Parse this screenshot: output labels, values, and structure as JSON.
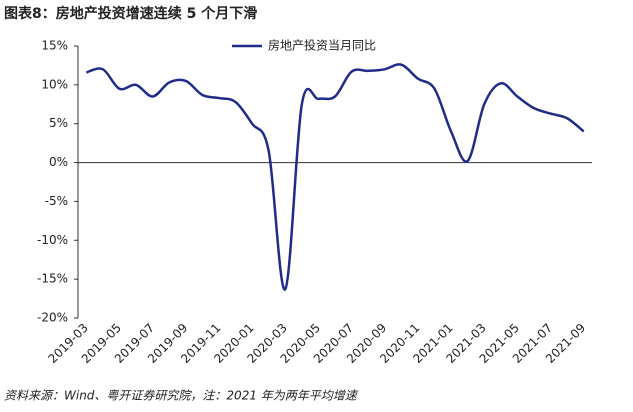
{
  "chart_data": {
    "type": "line",
    "title": "图表8：房地产投资增速连续 5 个月下滑",
    "note": "资料来源：Wind、粤开证券研究院，注：2021 年为两年平均增速",
    "categories": [
      "2019-03",
      null,
      "2019-05",
      null,
      "2019-07",
      null,
      "2019-09",
      null,
      "2019-11",
      null,
      "2020-01",
      null,
      "2020-03",
      null,
      "2020-05",
      null,
      "2020-07",
      null,
      "2020-09",
      null,
      "2020-11",
      null,
      "2021-01",
      null,
      "2021-03",
      null,
      "2021-05",
      null,
      "2021-07",
      null,
      "2021-09"
    ],
    "series": [
      {
        "name": "房地产投资当月同比",
        "color": "#1f2d86",
        "values": [
          11.6,
          12.0,
          9.5,
          10.0,
          8.5,
          10.3,
          10.5,
          8.7,
          8.3,
          7.8,
          5.0,
          1.5,
          -16.3,
          7.5,
          8.2,
          8.5,
          11.7,
          11.8,
          12.0,
          12.6,
          10.8,
          9.5,
          4.0,
          0.2,
          7.5,
          10.2,
          8.5,
          7.0,
          6.3,
          5.7,
          4.0
        ]
      }
    ],
    "ylim": [
      -20,
      15
    ],
    "yticks": [
      {
        "value": -20,
        "label": "-20%"
      },
      {
        "value": -15,
        "label": "-15%"
      },
      {
        "value": -10,
        "label": "-10%"
      },
      {
        "value": -5,
        "label": "-5%"
      },
      {
        "value": 0,
        "label": "0%"
      },
      {
        "value": 5,
        "label": "5%"
      },
      {
        "value": 10,
        "label": "10%"
      },
      {
        "value": 15,
        "label": "15%"
      }
    ],
    "legend": "top"
  }
}
